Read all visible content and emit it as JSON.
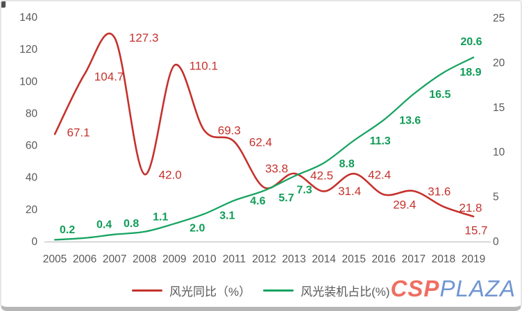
{
  "chart_data": {
    "type": "line",
    "categories": [
      "2005",
      "2006",
      "2007",
      "2008",
      "2009",
      "2010",
      "2011",
      "2012",
      "2013",
      "2014",
      "2015",
      "2016",
      "2017",
      "2018",
      "2019"
    ],
    "series": [
      {
        "name": "风光同比（%）",
        "axis": "left",
        "color": "#c5312c",
        "label_color": "#c5312c",
        "label_bold": false,
        "values": [
          67.1,
          104.7,
          127.3,
          42.0,
          110.1,
          69.3,
          62.4,
          33.8,
          42.5,
          31.4,
          42.4,
          29.4,
          31.6,
          21.8,
          15.7
        ]
      },
      {
        "name": "风光装机占比(%)",
        "axis": "right",
        "color": "#17a361",
        "label_color": "#0f9c56",
        "label_bold": true,
        "values": [
          0.2,
          0.4,
          0.8,
          1.1,
          2.0,
          3.1,
          4.6,
          5.7,
          7.3,
          8.8,
          11.3,
          13.6,
          16.5,
          18.9,
          20.6
        ]
      }
    ],
    "left_axis": {
      "min": 0,
      "max": 140,
      "step": 20,
      "ticks": [
        0,
        20,
        40,
        60,
        80,
        100,
        120,
        140
      ]
    },
    "right_axis": {
      "min": 0,
      "max": 25,
      "step": 5,
      "ticks": [
        0,
        5,
        10,
        15,
        20,
        25
      ]
    },
    "title": "",
    "xlabel": "",
    "ylabel": "",
    "grid": false,
    "baseline_color": "#c9c9c9",
    "axis_text_color": "#595959",
    "legend_position": "bottom"
  },
  "logo": {
    "part1": "CSP",
    "part2": "PLAZA",
    "part1_color": "#ee6f61",
    "part2_color": "#7096d3"
  }
}
